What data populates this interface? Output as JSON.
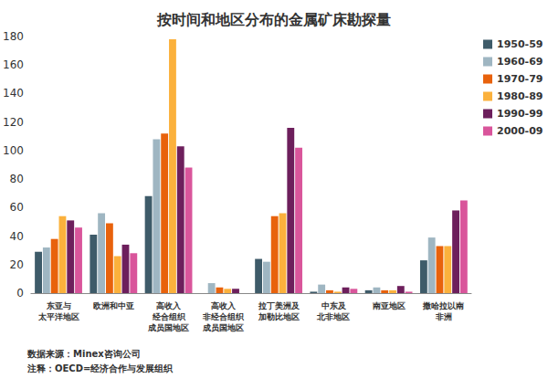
{
  "chart_data": {
    "type": "bar",
    "title": "按时间和地区分布的金属矿床勘探量",
    "annotations": [
      "数据来源：Minex咨询公司",
      "注释：OECD=经济合作与发展组织"
    ],
    "categories": [
      "东亚与\n太平洋地区",
      "欧洲和中亚",
      "高收入\n经合组织\n成员国地区",
      "高收入\n非经合组织\n成员国地区",
      "拉丁美洲及\n加勒比地区",
      "中东及\n北非地区",
      "南亚地区",
      "撒哈拉以南\n非洲"
    ],
    "series": [
      {
        "name": "1950-59",
        "color": "#3e5b69",
        "values": [
          29,
          41,
          68,
          0,
          24,
          1,
          2,
          23
        ]
      },
      {
        "name": "1960-69",
        "color": "#9fb6c2",
        "values": [
          32,
          56,
          108,
          7,
          22,
          6,
          4,
          39
        ]
      },
      {
        "name": "1970-79",
        "color": "#e8620c",
        "values": [
          38,
          49,
          112,
          4,
          54,
          2,
          2,
          33
        ]
      },
      {
        "name": "1980-89",
        "color": "#fbb13c",
        "values": [
          54,
          26,
          178,
          3,
          56,
          1,
          2,
          33
        ]
      },
      {
        "name": "1990-99",
        "color": "#6d1f5c",
        "values": [
          51,
          34,
          103,
          3,
          116,
          4,
          5,
          58
        ]
      },
      {
        "name": "2000-09",
        "color": "#d9559b",
        "values": [
          46,
          28,
          88,
          0,
          102,
          3,
          1,
          65
        ]
      }
    ],
    "ylim": [
      0,
      180
    ],
    "yticks": [
      0,
      20,
      40,
      60,
      80,
      100,
      120,
      140,
      160,
      180
    ],
    "grid": false,
    "legend": "upper right"
  }
}
